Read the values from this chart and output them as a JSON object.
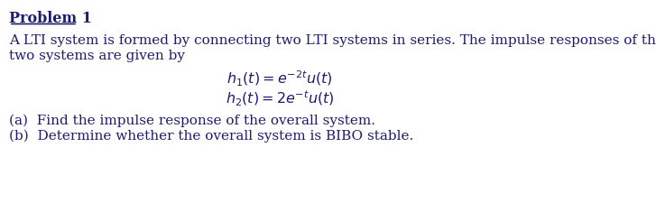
{
  "background_color": "#ffffff",
  "title_text": "Problem 1",
  "title_fontsize": 11.5,
  "body_text1": "A LTI system is formed by connecting two LTI systems in series. The impulse responses of the",
  "body_text2": "two systems are given by",
  "body_fontsize": 11.0,
  "eq1": "$h_1(t) = e^{-2t}u(t)$",
  "eq2": "$h_2(t) = 2e^{-t}u(t)$",
  "eq_fontsize": 11.5,
  "part_a": "(a)  Find the impulse response of the overall system.",
  "part_b": "(b)  Determine whether the overall system is BIBO stable.",
  "parts_fontsize": 11.0,
  "text_color": "#1c1c6e",
  "title_color": "#1c1c6e"
}
